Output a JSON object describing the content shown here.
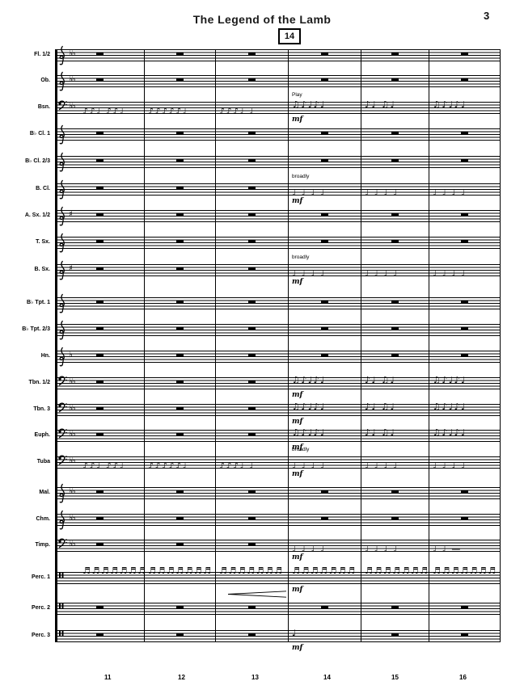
{
  "page": {
    "title": "The Legend of the Lamb",
    "page_number": "3",
    "rehearsal_mark": "14"
  },
  "measure_numbers": [
    "11",
    "12",
    "13",
    "14",
    "15",
    "16"
  ],
  "texts": {
    "play": "Play",
    "broadly": "broadly",
    "mf": "mf"
  },
  "colors": {
    "ink": "#000000",
    "paper": "#ffffff"
  },
  "staves": [
    {
      "label": "Fl. 1/2",
      "clef": "treble",
      "key": "♭♭",
      "measures": [
        {
          "rest": true
        },
        {
          "rest": true
        },
        {
          "rest": true
        },
        {
          "rest": true
        },
        {
          "rest": true
        },
        {
          "rest": true
        }
      ],
      "annotations": []
    },
    {
      "label": "Ob.",
      "clef": "treble",
      "key": "♭♭",
      "measures": [
        {
          "rest": true
        },
        {
          "rest": true
        },
        {
          "rest": true
        },
        {
          "rest": true
        },
        {
          "rest": true
        },
        {
          "rest": true
        }
      ],
      "annotations": []
    },
    {
      "label": "Bsn.",
      "clef": "bass",
      "key": "♭♭",
      "measures": [
        {
          "glyphs": "♪♪♩ ♪♪♩",
          "line": "low"
        },
        {
          "glyphs": "♪♪♪♪♪♩",
          "line": "low"
        },
        {
          "glyphs": "♪♪♪♩ ♩",
          "line": "low"
        },
        {
          "glyphs": "♫♪♩♪♩",
          "line": "mid"
        },
        {
          "glyphs": "♪♩ ♫♩",
          "line": "mid"
        },
        {
          "glyphs": "♫♪♩♪♩",
          "line": "mid"
        }
      ],
      "annotations": [
        {
          "text": "Play",
          "m": 3,
          "place": "above",
          "dyn": false
        },
        {
          "text": "mf",
          "m": 3,
          "place": "below",
          "dyn": true
        }
      ]
    },
    {
      "label": "B♭ Cl. 1",
      "clef": "treble",
      "key": "",
      "measures": [
        {
          "rest": true
        },
        {
          "rest": true
        },
        {
          "rest": true
        },
        {
          "rest": true
        },
        {
          "rest": true
        },
        {
          "rest": true
        }
      ],
      "annotations": []
    },
    {
      "label": "B♭ Cl. 2/3",
      "clef": "treble",
      "key": "",
      "measures": [
        {
          "rest": true
        },
        {
          "rest": true
        },
        {
          "rest": true
        },
        {
          "rest": true
        },
        {
          "rest": true
        },
        {
          "rest": true
        }
      ],
      "annotations": []
    },
    {
      "label": "B. Cl.",
      "clef": "treble",
      "key": "",
      "measures": [
        {
          "rest": true
        },
        {
          "rest": true
        },
        {
          "rest": true
        },
        {
          "glyphs": "♩ ♩ ♩ ♩",
          "line": "low"
        },
        {
          "glyphs": "♩ ♩ ♩ ♩",
          "line": "low"
        },
        {
          "glyphs": "♩ ♩ ♩ ♩",
          "line": "low"
        }
      ],
      "annotations": [
        {
          "text": "broadly",
          "m": 3,
          "place": "above",
          "dyn": false
        },
        {
          "text": "mf",
          "m": 3,
          "place": "below",
          "dyn": true
        }
      ]
    },
    {
      "label": "A. Sx. 1/2",
      "clef": "treble",
      "key": "♯",
      "measures": [
        {
          "rest": true
        },
        {
          "rest": true
        },
        {
          "rest": true
        },
        {
          "rest": true
        },
        {
          "rest": true
        },
        {
          "rest": true
        }
      ],
      "annotations": []
    },
    {
      "label": "T. Sx.",
      "clef": "treble",
      "key": "",
      "measures": [
        {
          "rest": true
        },
        {
          "rest": true
        },
        {
          "rest": true
        },
        {
          "rest": true
        },
        {
          "rest": true
        },
        {
          "rest": true
        }
      ],
      "annotations": []
    },
    {
      "label": "B. Sx.",
      "clef": "treble",
      "key": "♯",
      "measures": [
        {
          "rest": true
        },
        {
          "rest": true
        },
        {
          "rest": true
        },
        {
          "glyphs": "♩ ♩ ♩ ♩",
          "line": "low"
        },
        {
          "glyphs": "♩ ♩ ♩ ♩",
          "line": "low"
        },
        {
          "glyphs": "♩ ♩ ♩ ♩",
          "line": "low"
        }
      ],
      "annotations": [
        {
          "text": "broadly",
          "m": 3,
          "place": "above",
          "dyn": false
        },
        {
          "text": "mf",
          "m": 3,
          "place": "below",
          "dyn": true
        }
      ]
    },
    {
      "label": "B♭ Tpt. 1",
      "clef": "treble",
      "key": "",
      "measures": [
        {
          "rest": true
        },
        {
          "rest": true
        },
        {
          "rest": true
        },
        {
          "rest": true
        },
        {
          "rest": true
        },
        {
          "rest": true
        }
      ],
      "annotations": []
    },
    {
      "label": "B♭ Tpt. 2/3",
      "clef": "treble",
      "key": "",
      "measures": [
        {
          "rest": true
        },
        {
          "rest": true
        },
        {
          "rest": true
        },
        {
          "rest": true
        },
        {
          "rest": true
        },
        {
          "rest": true
        }
      ],
      "annotations": []
    },
    {
      "label": "Hn.",
      "clef": "treble",
      "key": "♭",
      "measures": [
        {
          "rest": true
        },
        {
          "rest": true
        },
        {
          "rest": true
        },
        {
          "rest": true
        },
        {
          "rest": true
        },
        {
          "rest": true
        }
      ],
      "annotations": []
    },
    {
      "label": "Tbn. 1/2",
      "clef": "bass",
      "key": "♭♭",
      "measures": [
        {
          "rest": true
        },
        {
          "rest": true
        },
        {
          "rest": true
        },
        {
          "glyphs": "♫♪♩♪♩",
          "line": "mid"
        },
        {
          "glyphs": "♪♩ ♫♩",
          "line": "mid"
        },
        {
          "glyphs": "♫♪♩♪♩",
          "line": "mid"
        }
      ],
      "annotations": [
        {
          "text": "mf",
          "m": 3,
          "place": "below",
          "dyn": true
        }
      ]
    },
    {
      "label": "Tbn. 3",
      "clef": "bass",
      "key": "♭♭",
      "measures": [
        {
          "rest": true
        },
        {
          "rest": true
        },
        {
          "rest": true
        },
        {
          "glyphs": "♫♪♩♪♩",
          "line": "mid"
        },
        {
          "glyphs": "♪♩ ♫♩",
          "line": "mid"
        },
        {
          "glyphs": "♫♪♩♪♩",
          "line": "mid"
        }
      ],
      "annotations": [
        {
          "text": "mf",
          "m": 3,
          "place": "below",
          "dyn": true
        }
      ]
    },
    {
      "label": "Euph.",
      "clef": "bass",
      "key": "♭♭",
      "measures": [
        {
          "rest": true
        },
        {
          "rest": true
        },
        {
          "rest": true
        },
        {
          "glyphs": "♫♪♩♪♩",
          "line": "mid"
        },
        {
          "glyphs": "♪♩ ♫♩",
          "line": "mid"
        },
        {
          "glyphs": "♫♪♩♪♩",
          "line": "mid"
        }
      ],
      "annotations": [
        {
          "text": "mf",
          "m": 3,
          "place": "below",
          "dyn": true
        }
      ]
    },
    {
      "label": "Tuba",
      "clef": "bass",
      "key": "♭♭",
      "measures": [
        {
          "glyphs": "♪♪♩ ♪♪♩",
          "line": "low"
        },
        {
          "glyphs": "♪♪♪♪♪♩",
          "line": "low"
        },
        {
          "glyphs": "♪♪♪♩ ♩",
          "line": "low"
        },
        {
          "glyphs": "♩ ♩ ♩ ♩",
          "line": "low"
        },
        {
          "glyphs": "♩ ♩ ♩ ♩",
          "line": "low"
        },
        {
          "glyphs": "♩ ♩ ♩ ♩",
          "line": "low"
        }
      ],
      "annotations": [
        {
          "text": "broadly",
          "m": 3,
          "place": "above",
          "dyn": false
        },
        {
          "text": "mf",
          "m": 3,
          "place": "below",
          "dyn": true
        }
      ]
    },
    {
      "label": "Mal.",
      "clef": "treble",
      "key": "♭♭",
      "measures": [
        {
          "rest": true
        },
        {
          "rest": true
        },
        {
          "rest": true
        },
        {
          "rest": true
        },
        {
          "rest": true
        },
        {
          "rest": true
        }
      ],
      "annotations": []
    },
    {
      "label": "Chm.",
      "clef": "treble",
      "key": "♭♭",
      "measures": [
        {
          "rest": true
        },
        {
          "rest": true
        },
        {
          "rest": true
        },
        {
          "rest": true
        },
        {
          "rest": true
        },
        {
          "rest": true
        }
      ],
      "annotations": []
    },
    {
      "label": "Timp.",
      "clef": "bass",
      "key": "♭♭",
      "measures": [
        {
          "rest": true
        },
        {
          "rest": true
        },
        {
          "rest": true
        },
        {
          "glyphs": "♩ ♩ ♩ ♩",
          "line": "low"
        },
        {
          "glyphs": "♩ ♩ ♩ ♩",
          "line": "low"
        },
        {
          "glyphs": "♩ ♩ —",
          "line": "low"
        }
      ],
      "annotations": [
        {
          "text": "mf",
          "m": 3,
          "place": "below",
          "dyn": true
        }
      ]
    },
    {
      "label": "Perc. 1",
      "clef": "perc",
      "key": "",
      "measures": [
        {
          "glyphs": "♬♬♬♬♬♬♬",
          "line": "high"
        },
        {
          "glyphs": "♬♬♬♬♬♬♬",
          "line": "high"
        },
        {
          "glyphs": "♬♬♬♬♬♬♬",
          "line": "high"
        },
        {
          "glyphs": "♬♬♬♬♬♬♬",
          "line": "high"
        },
        {
          "glyphs": "♬♬♬♬♬♬♬",
          "line": "high"
        },
        {
          "glyphs": "♬♬♬♬♬♬♬",
          "line": "high"
        }
      ],
      "annotations": [
        {
          "text": "mf",
          "m": 3,
          "place": "below",
          "dyn": true
        }
      ],
      "hairpin": {
        "m": 2
      }
    },
    {
      "label": "Perc. 2",
      "clef": "perc",
      "key": "",
      "measures": [
        {
          "rest": true
        },
        {
          "rest": true
        },
        {
          "rest": true
        },
        {
          "rest": true
        },
        {
          "rest": true
        },
        {
          "rest": true
        }
      ],
      "annotations": []
    },
    {
      "label": "Perc. 3",
      "clef": "perc",
      "key": "",
      "measures": [
        {
          "rest": true
        },
        {
          "rest": true
        },
        {
          "rest": true
        },
        {
          "glyphs": "♩",
          "line": "mid"
        },
        {
          "rest": true
        },
        {
          "rest": true
        }
      ],
      "annotations": [
        {
          "text": "mf",
          "m": 3,
          "place": "below",
          "dyn": true
        }
      ]
    }
  ]
}
